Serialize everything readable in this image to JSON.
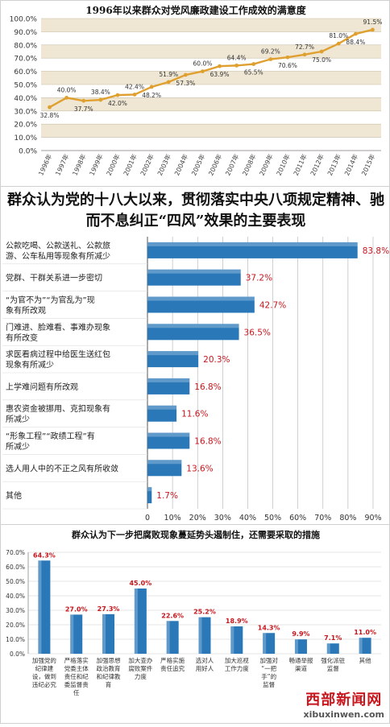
{
  "chart_data": [
    {
      "type": "line",
      "title": "1996年以来群众对党风廉政建设工作成效的满意度",
      "x": [
        "1996年",
        "1997年",
        "1998年",
        "1999年",
        "2000年",
        "2001年",
        "2002年",
        "2003年",
        "2004年",
        "2005年",
        "2006年",
        "2007年",
        "2008年",
        "2009年",
        "2010年",
        "2011年",
        "2012年",
        "2013年",
        "2014年",
        "2015年"
      ],
      "values": [
        32.8,
        40.0,
        37.7,
        38.4,
        42.0,
        42.4,
        48.2,
        51.9,
        57.3,
        60.0,
        63.9,
        64.4,
        65.5,
        69.2,
        70.6,
        72.7,
        75.0,
        81.0,
        88.4,
        91.5
      ],
      "labels": [
        "32.8%",
        "40.0%",
        "37.7%",
        "38.4%",
        "42.0%",
        "42.4%",
        "48.2%",
        "51.9%",
        "57.3%",
        "60.0%",
        "63.9%",
        "64.4%",
        "65.5%",
        "69.2%",
        "70.6%",
        "72.7%",
        "75.0%",
        "81.0%",
        "88.4%",
        "91.5%"
      ],
      "yticks": [
        "0.0%",
        "10.0%",
        "20.0%",
        "30.0%",
        "40.0%",
        "50.0%",
        "60.0%",
        "70.0%",
        "80.0%",
        "90.0%",
        "100.0%"
      ],
      "ylim": [
        0,
        100
      ],
      "line_color": "#e0a030",
      "band_color": "#efe7d4"
    },
    {
      "type": "bar",
      "orientation": "horizontal",
      "title": "群众认为党的十八大以来，贯彻落实中央八项规定精神、驰而不息纠正“四风”效果的主要表现",
      "categories": [
        [
          "公款吃喝、公款送礼、公款旅",
          "游、公车私用等现象有所减少"
        ],
        [
          "党群、干群关系进一步密切"
        ],
        [
          "“为官不为”“为官乱为”现",
          "象有所改观"
        ],
        [
          "门难进、脸难看、事难办现象",
          "有所改变"
        ],
        [
          "求医看病过程中给医生送红包",
          "现象有所减少"
        ],
        [
          "上学难问题有所改观"
        ],
        [
          "惠农资金被挪用、克扣现象有",
          "所减少"
        ],
        [
          "“形象工程”“政绩工程”有",
          "所减少"
        ],
        [
          "选人用人中的不正之风有所收敛"
        ],
        [
          "其他"
        ]
      ],
      "values": [
        83.8,
        37.2,
        42.7,
        36.5,
        20.3,
        16.8,
        11.6,
        16.8,
        13.6,
        1.7
      ],
      "labels": [
        "83.8%",
        "37.2%",
        "42.7%",
        "36.5%",
        "20.3%",
        "16.8%",
        "11.6%",
        "16.8%",
        "13.6%",
        "1.7%"
      ],
      "xticks": [
        "0",
        "10%",
        "20%",
        "30%",
        "40%",
        "50%",
        "60%",
        "70%",
        "80%",
        "90%"
      ],
      "xlim": [
        0,
        90
      ],
      "bar_color": "#2a78b8",
      "label_color": "#c8161d"
    },
    {
      "type": "bar",
      "title": "群众认为下一步把腐败现象蔓延势头遏制住，还需要采取的措施",
      "categories": [
        [
          "加强党的",
          "纪律建",
          "设，做到",
          "违纪必究"
        ],
        [
          "严格落实",
          "党委主体",
          "责任和纪",
          "委监督责",
          "任"
        ],
        [
          "加强思想",
          "政治教育",
          "和纪律教",
          "育"
        ],
        [
          "加大查办",
          "腐败案件",
          "力度"
        ],
        [
          "严格实施",
          "责任追究"
        ],
        [
          "选对人",
          "用好人"
        ],
        [
          "加大巡视",
          "工作力度"
        ],
        [
          "加强对",
          "“一把",
          "手”的",
          "监督"
        ],
        [
          "畅通举报",
          "渠道"
        ],
        [
          "强化派驻",
          "监督"
        ],
        [
          "其他"
        ]
      ],
      "values": [
        64.3,
        27.0,
        27.3,
        45.0,
        22.6,
        25.2,
        18.9,
        14.3,
        9.9,
        7.1,
        11.0
      ],
      "labels": [
        "64.3%",
        "27.0%",
        "27.3%",
        "45.0%",
        "22.6%",
        "25.2%",
        "18.9%",
        "14.3%",
        "9.9%",
        "7.1%",
        "11.0%"
      ],
      "yticks": [
        "0.0%",
        "10.0%",
        "20.0%",
        "30.0%",
        "40.0%",
        "50.0%",
        "60.0%",
        "70.0%"
      ],
      "ylim": [
        0,
        70
      ],
      "bar_color": "#2a78b8",
      "label_color": "#c8161d"
    }
  ],
  "watermark": {
    "name": "西部新闻网",
    "url": "xibuxinwen.com"
  }
}
